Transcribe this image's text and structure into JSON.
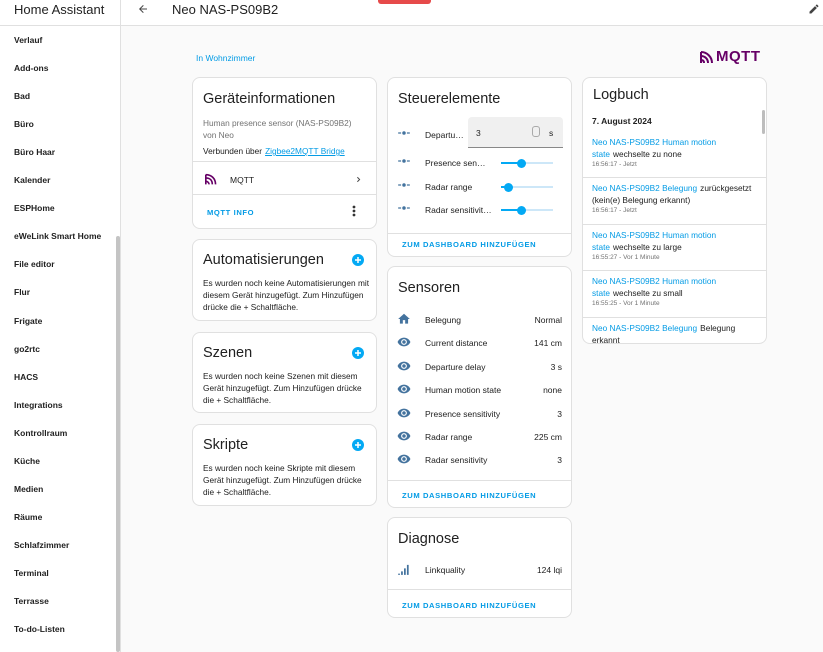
{
  "sidebar": {
    "title": "Home Assistant",
    "items": [
      "Verlauf",
      "Add-ons",
      "Bad",
      "Büro",
      "Büro Haar",
      "Kalender",
      "ESPHome",
      "eWeLink Smart Home",
      "File editor",
      "Flur",
      "Frigate",
      "go2rtc",
      "HACS",
      "Integrations",
      "Kontrollraum",
      "Küche",
      "Medien",
      "Räume",
      "Schlafzimmer",
      "Terminal",
      "Terrasse",
      "To-do-Listen"
    ]
  },
  "header": {
    "title": "Neo NAS-PS09B2"
  },
  "area_link": "In Wohnzimmer",
  "logo": "MQTT",
  "device_info": {
    "title": "Geräteinformationen",
    "model": "Human presence sensor (NAS-PS09B2)",
    "manufacturer": "von Neo",
    "connected_prefix": "Verbunden über",
    "connected_link": "Zigbee2MQTT Bridge",
    "integration": "MQTT",
    "action": "MQTT INFO"
  },
  "automations": {
    "title": "Automatisierungen",
    "text": "Es wurden noch keine Automatisierungen mit diesem Gerät hinzugefügt. Zum Hinzufügen drücke die + Schaltfläche."
  },
  "scenes": {
    "title": "Szenen",
    "text": "Es wurden noch keine Szenen mit diesem Gerät hinzugefügt. Zum Hinzufügen drücke die + Schaltfläche."
  },
  "scripts": {
    "title": "Skripte",
    "text": "Es wurden noch keine Skripte mit diesem Gerät hinzugefügt. Zum Hinzufügen drücke die + Schaltfläche."
  },
  "controls": {
    "title": "Steuerelemente",
    "rows": [
      {
        "label": "Departu…",
        "value": "3",
        "unit": "s"
      },
      {
        "label": "Presence sen…"
      },
      {
        "label": "Radar range"
      },
      {
        "label": "Radar sensitivit…"
      }
    ],
    "action": "ZUM DASHBOARD HINZUFÜGEN"
  },
  "sensors": {
    "title": "Sensoren",
    "rows": [
      {
        "label": "Belegung",
        "value": "Normal"
      },
      {
        "label": "Current distance",
        "value": "141 cm"
      },
      {
        "label": "Departure delay",
        "value": "3 s"
      },
      {
        "label": "Human motion state",
        "value": "none"
      },
      {
        "label": "Presence sensitivity",
        "value": "3"
      },
      {
        "label": "Radar range",
        "value": "225 cm"
      },
      {
        "label": "Radar sensitivity",
        "value": "3"
      }
    ],
    "action": "ZUM DASHBOARD HINZUFÜGEN"
  },
  "diagnostics": {
    "title": "Diagnose",
    "rows": [
      {
        "label": "Linkquality",
        "value": "124 lqi"
      }
    ],
    "action": "ZUM DASHBOARD HINZUFÜGEN"
  },
  "logbook": {
    "title": "Logbuch",
    "date": "7. August 2024",
    "entries": [
      {
        "entity": "Neo NAS-PS09B2 Human motion state",
        "message": "wechselte zu none",
        "time": "16:56:17 - Jetzt"
      },
      {
        "entity": "Neo NAS-PS09B2 Belegung",
        "message": "zurückgesetzt (kein(e) Belegung erkannt)",
        "time": "16:56:17 - Jetzt"
      },
      {
        "entity": "Neo NAS-PS09B2 Human motion state",
        "message": "wechselte zu large",
        "time": "16:55:27 - Vor 1 Minute"
      },
      {
        "entity": "Neo NAS-PS09B2 Human motion state",
        "message": "wechselte zu small",
        "time": "16:55:25 - Vor 1 Minute"
      },
      {
        "entity": "Neo NAS-PS09B2 Belegung",
        "message": "Belegung erkannt",
        "time": ""
      }
    ]
  }
}
